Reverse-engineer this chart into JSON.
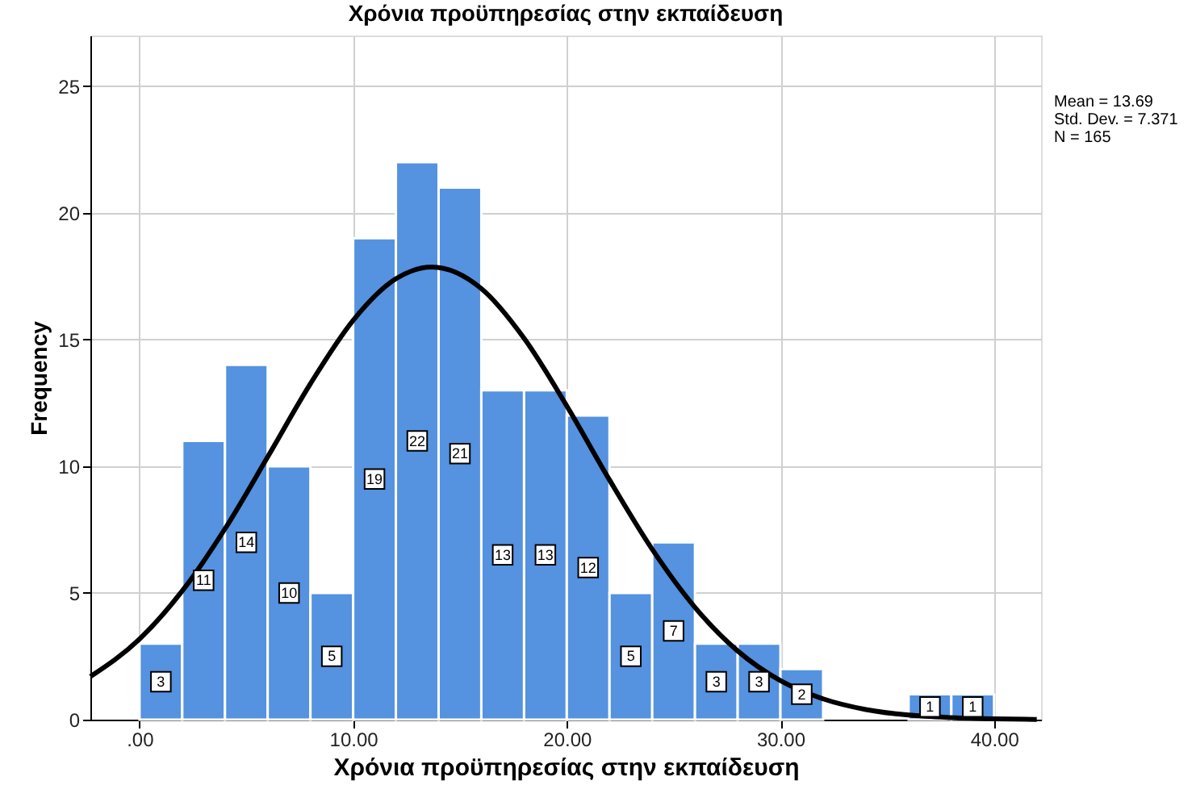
{
  "chart_data": {
    "type": "histogram",
    "title": "Χρόνια προϋπηρεσίας στην εκπαίδευση",
    "xlabel": "Χρόνια προϋπηρεσίας στην εκπαίδευση",
    "ylabel": "Frequency",
    "annotations": [
      "Mean = 13.69",
      "Std. Dev. = 7.371",
      "N = 165"
    ],
    "xlim": [
      -2.3,
      42.2
    ],
    "ylim": [
      0,
      27
    ],
    "xticks": [
      {
        "value": 0,
        "label": ".00"
      },
      {
        "value": 10,
        "label": "10.00"
      },
      {
        "value": 20,
        "label": "20.00"
      },
      {
        "value": 30,
        "label": "30.00"
      },
      {
        "value": 40,
        "label": "40.00"
      }
    ],
    "yticks": [
      0,
      5,
      10,
      15,
      20,
      25
    ],
    "grid": true,
    "series": [
      {
        "color": "#5592e0",
        "bins": [
          0,
          2,
          4,
          6,
          8,
          10,
          12,
          14,
          16,
          18,
          20,
          22,
          24,
          26,
          28,
          30,
          32,
          34,
          36,
          38,
          40
        ],
        "values": [
          3,
          11,
          14,
          10,
          5,
          19,
          22,
          21,
          13,
          13,
          12,
          5,
          7,
          3,
          3,
          2,
          0,
          0,
          1,
          1
        ],
        "value_labels": [
          "3",
          "11",
          "14",
          "10",
          "5",
          "19",
          "22",
          "21",
          "13",
          "13",
          "12",
          "5",
          "7",
          "3",
          "3",
          "2",
          null,
          null,
          "1",
          "1"
        ]
      },
      {
        "type": "line",
        "color": "#000000",
        "x": [
          -2.3,
          0,
          2,
          4,
          6,
          8,
          10,
          12,
          13.69,
          16,
          18,
          20,
          22,
          24,
          26,
          28,
          30,
          32,
          34,
          36,
          38,
          40,
          42
        ],
        "values": [
          1.7,
          3.18,
          5.08,
          7.53,
          10.37,
          13.26,
          15.76,
          17.4,
          17.86,
          17.01,
          15.05,
          12.38,
          9.46,
          6.72,
          4.43,
          2.71,
          1.54,
          0.82,
          0.4,
          0.18,
          0.08,
          0.03,
          0.01
        ]
      }
    ]
  }
}
